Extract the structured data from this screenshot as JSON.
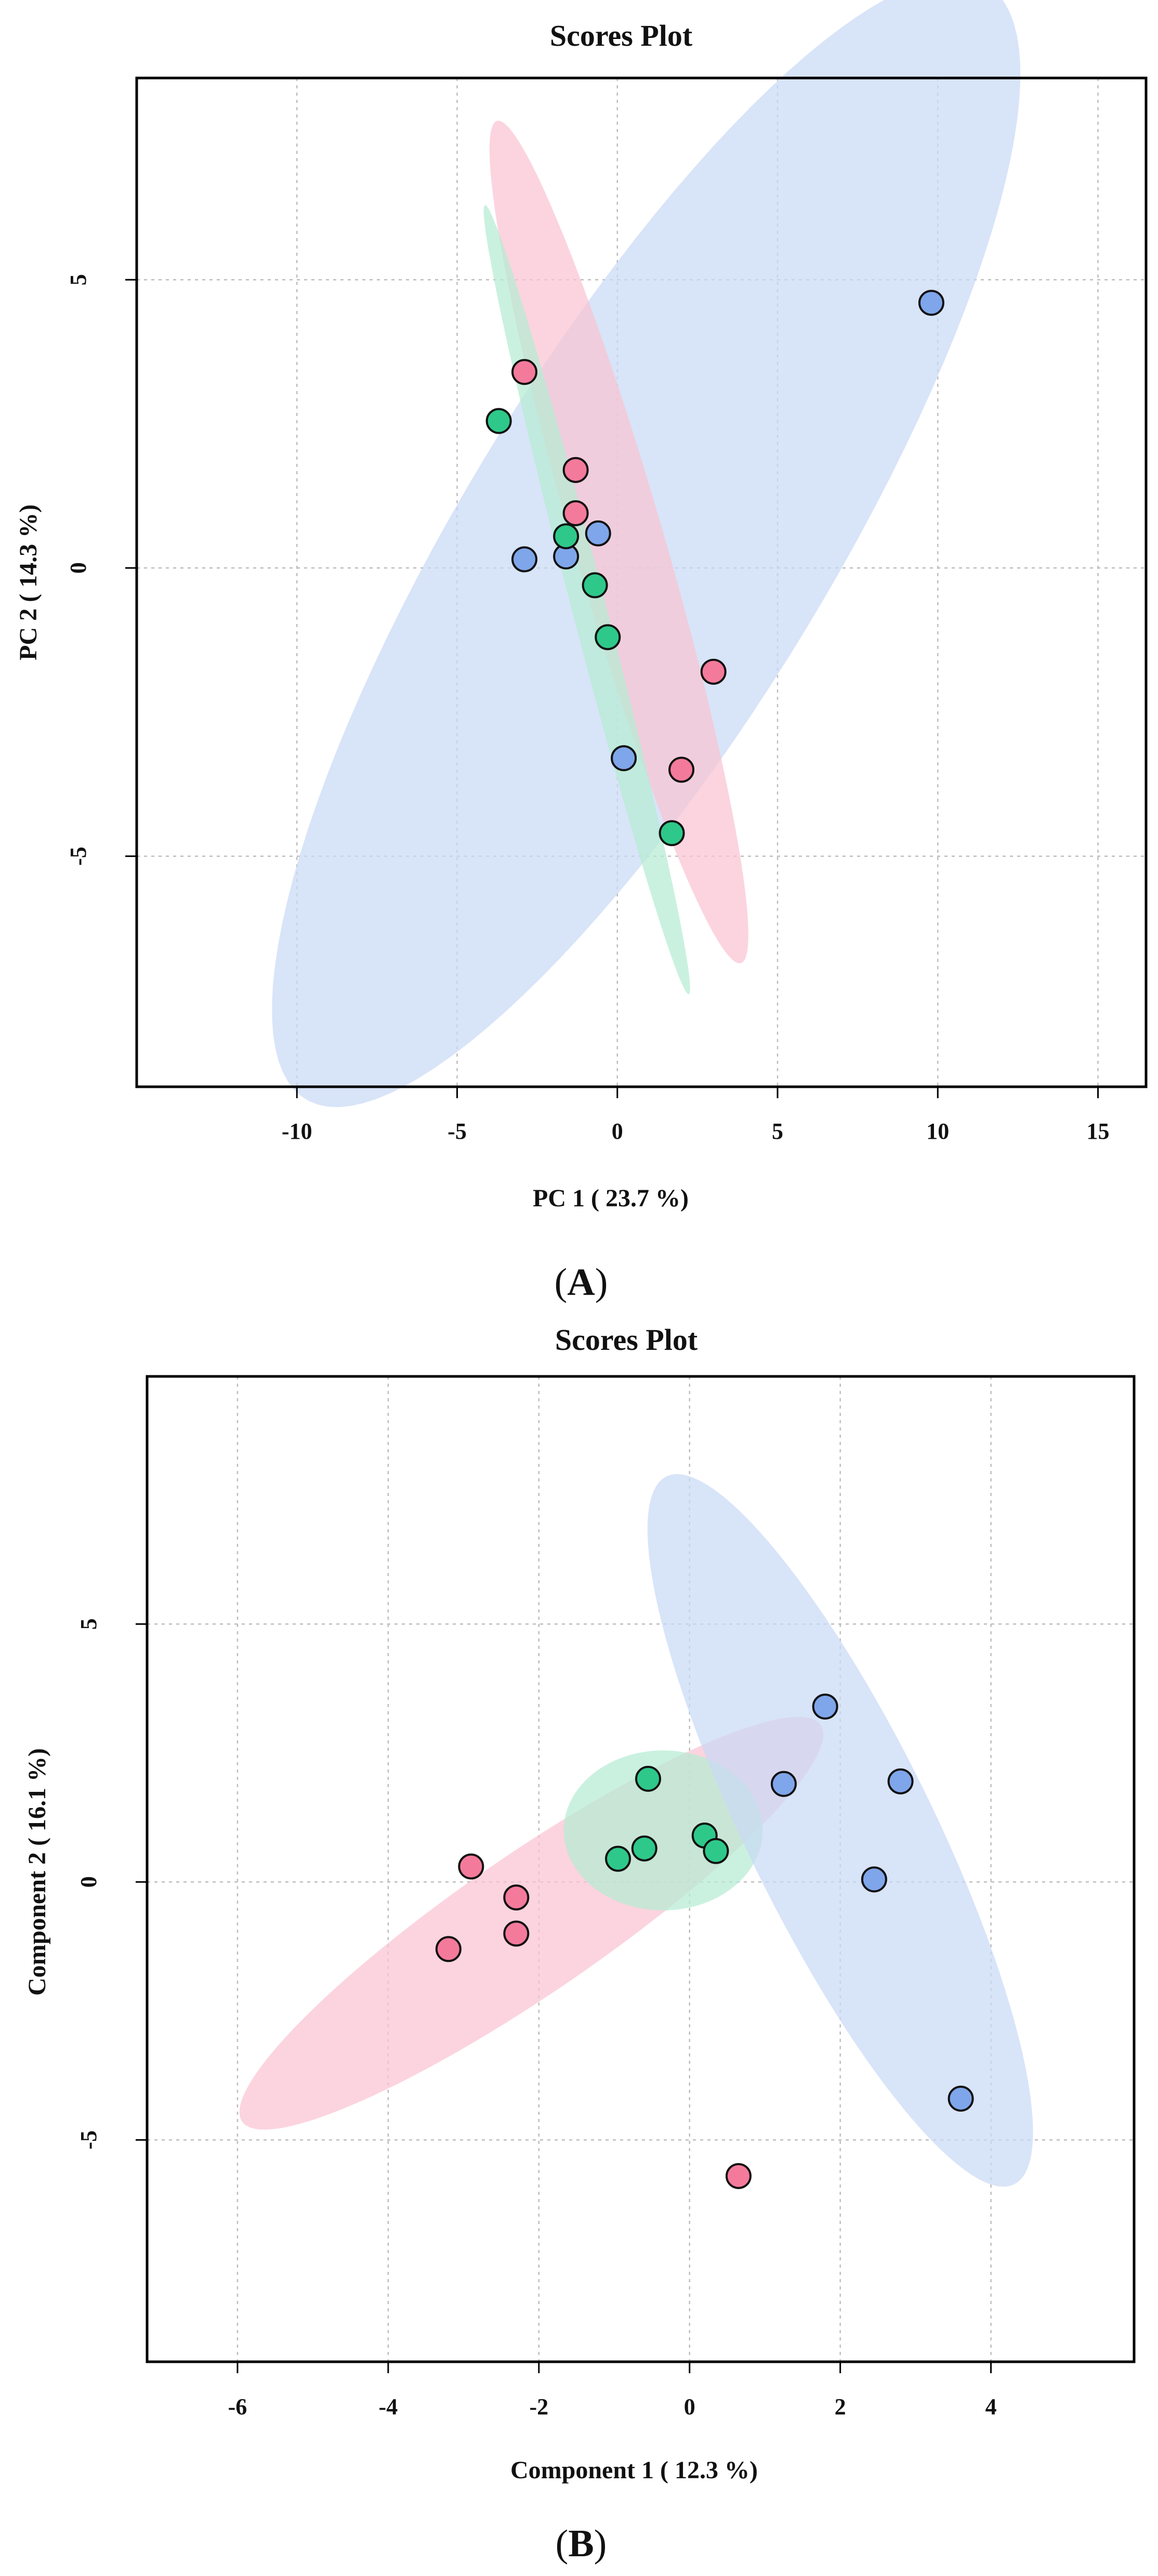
{
  "colors": {
    "group1_fill": "#7fa6ea",
    "group1_ellipse": "#c9d9f5",
    "group2_fill": "#f47a9b",
    "group2_ellipse": "#f9c3d3",
    "group3_fill": "#2ec98a",
    "group3_ellipse": "#b6ecd3",
    "grid": "#bdbdbd"
  },
  "chart_data": [
    {
      "type": "scatter",
      "panel_label": "A",
      "title": "Scores Plot",
      "xlabel": "PC 1 ( 23.7 %)",
      "ylabel": "PC 2 ( 14.3 %)",
      "xlim": [
        -15,
        16.5
      ],
      "ylim": [
        -9,
        8.5
      ],
      "xticks": [
        -10,
        -5,
        0,
        5,
        10,
        15
      ],
      "yticks": [
        5,
        0,
        -5
      ],
      "grid": true,
      "ellipses": [
        {
          "group": "blue",
          "cx": 0.9,
          "cy": 0.45,
          "rx": 14.6,
          "ry": 4.4,
          "angle_deg": 39
        },
        {
          "group": "pink",
          "cx": 0.05,
          "cy": 0.45,
          "rx": 8.25,
          "ry": 1.3,
          "angle_deg": -62
        },
        {
          "group": "green",
          "cx": -0.95,
          "cy": -0.55,
          "rx": 7.55,
          "ry": 0.5,
          "angle_deg": -65
        }
      ],
      "series": [
        {
          "name": "blue",
          "points": [
            [
              9.8,
              4.6
            ],
            [
              -2.9,
              0.15
            ],
            [
              -1.6,
              0.2
            ],
            [
              -0.6,
              0.6
            ],
            [
              0.2,
              -3.3
            ]
          ]
        },
        {
          "name": "pink",
          "points": [
            [
              -2.9,
              3.4
            ],
            [
              -1.3,
              1.7
            ],
            [
              -1.3,
              0.95
            ],
            [
              3.0,
              -1.8
            ],
            [
              2.0,
              -3.5
            ]
          ]
        },
        {
          "name": "green",
          "points": [
            [
              -3.7,
              2.55
            ],
            [
              -1.6,
              0.55
            ],
            [
              -0.7,
              -0.3
            ],
            [
              -0.3,
              -1.2
            ],
            [
              1.7,
              -4.6
            ]
          ]
        }
      ]
    },
    {
      "type": "scatter",
      "panel_label": "B",
      "title": "Scores Plot",
      "xlabel": "Component 1 ( 12.3 %)",
      "ylabel": "Component 2 ( 16.1 %)",
      "xlim": [
        -7.2,
        5.9
      ],
      "ylim": [
        -9.3,
        9.8
      ],
      "xticks": [
        -6,
        -4,
        -2,
        0,
        2,
        4
      ],
      "yticks": [
        5,
        0,
        -5
      ],
      "grid": true,
      "ellipses": [
        {
          "group": "pink",
          "cx": -2.1,
          "cy": -0.8,
          "rx": 5.45,
          "ry": 1.15,
          "angle_deg": 46
        },
        {
          "group": "green",
          "cx": -0.35,
          "cy": 1.0,
          "rx": 1.32,
          "ry": 1.55,
          "angle_deg": 0
        },
        {
          "group": "blue",
          "cx": 2.0,
          "cy": 1.0,
          "rx": 7.25,
          "ry": 1.3,
          "angle_deg": -72
        }
      ],
      "series": [
        {
          "name": "blue",
          "points": [
            [
              1.8,
              3.4
            ],
            [
              1.25,
              1.9
            ],
            [
              2.8,
              1.95
            ],
            [
              2.45,
              0.05
            ],
            [
              3.6,
              -4.2
            ]
          ]
        },
        {
          "name": "pink",
          "points": [
            [
              -2.9,
              0.3
            ],
            [
              -2.3,
              -0.3
            ],
            [
              -2.3,
              -1.0
            ],
            [
              -3.2,
              -1.3
            ],
            [
              0.65,
              -5.7
            ]
          ]
        },
        {
          "name": "green",
          "points": [
            [
              -0.55,
              2.0
            ],
            [
              -0.6,
              0.65
            ],
            [
              -0.95,
              0.45
            ],
            [
              0.2,
              0.9
            ],
            [
              0.35,
              0.6
            ]
          ]
        }
      ]
    }
  ]
}
